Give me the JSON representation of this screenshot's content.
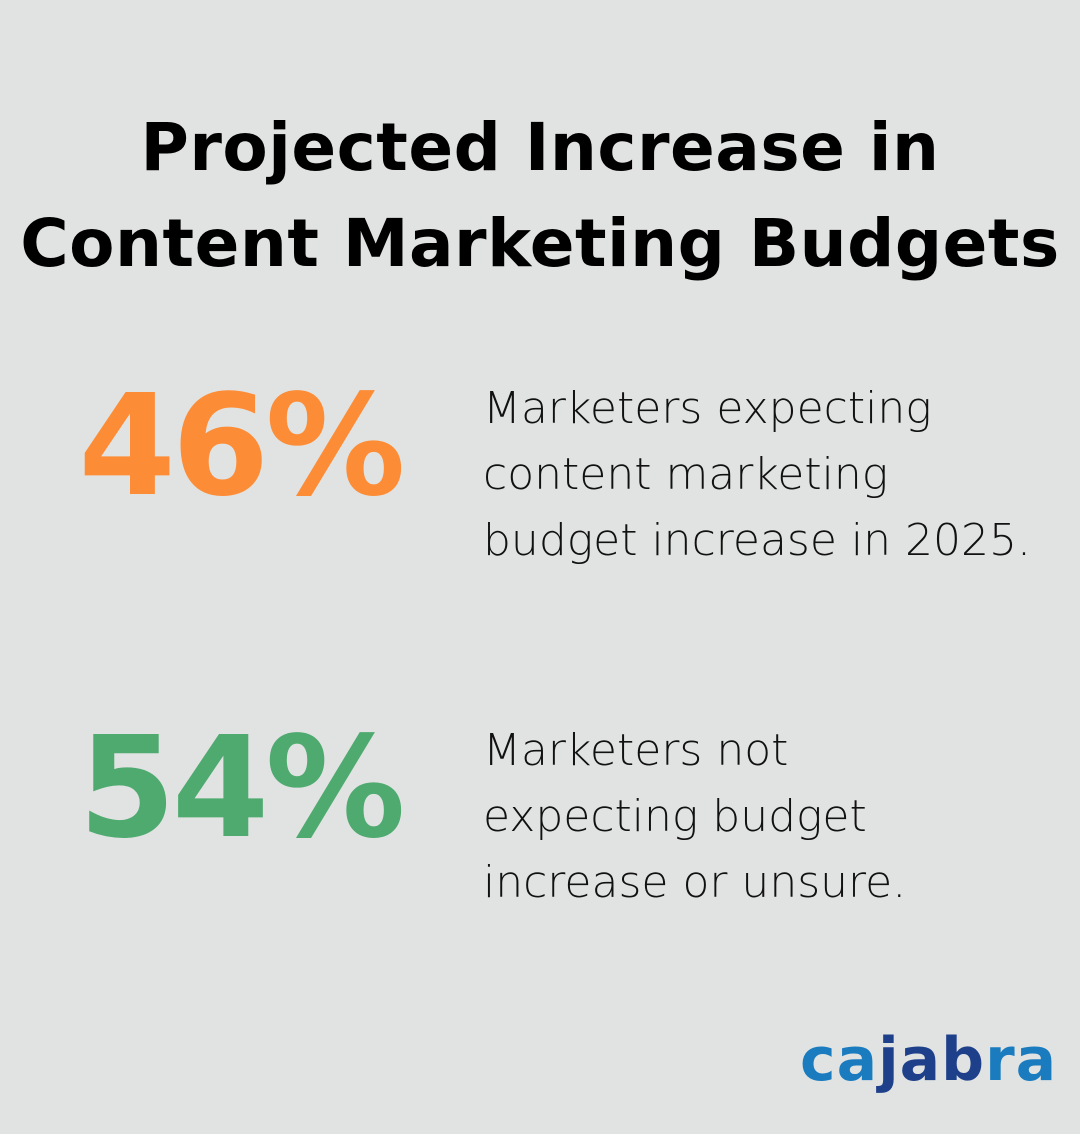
{
  "title": "Projected Increase in Content Marketing Budgets",
  "stats": [
    {
      "value": "46%",
      "color": "#fd8c36",
      "description": "Marketers expecting content marketing budget increase in 2025."
    },
    {
      "value": "54%",
      "color": "#4eaa6f",
      "description": "Marketers not expecting budget increase or unsure."
    }
  ],
  "logo": {
    "text": "cajabra",
    "parts": [
      "ca",
      "jab",
      "ra"
    ],
    "colors": [
      "#1a7bbf",
      "#1e3f8a",
      "#1a7bbf"
    ]
  }
}
